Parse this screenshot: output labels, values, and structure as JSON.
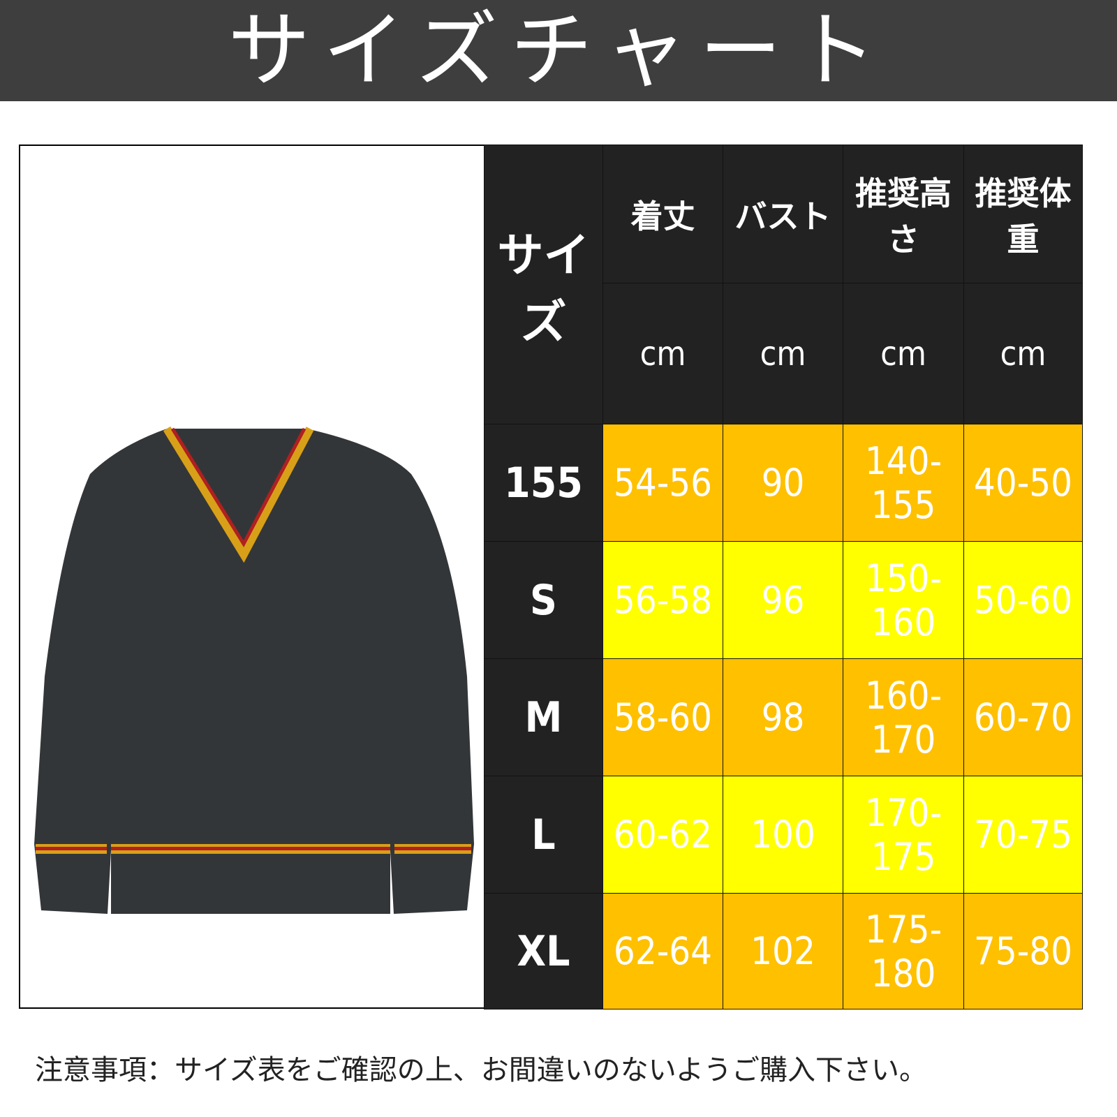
{
  "title": "サイズチャート",
  "table": {
    "size_header": "サイズ",
    "columns": [
      {
        "label": "着丈",
        "unit": "cm"
      },
      {
        "label": "バスト",
        "unit": "cm"
      },
      {
        "label": "推奨高さ",
        "unit": "cm"
      },
      {
        "label": "推奨体重",
        "unit": "cm"
      }
    ],
    "rows": [
      {
        "size": "155",
        "values": [
          "54-56",
          "90",
          "140-155",
          "40-50"
        ],
        "color": "#FFC000"
      },
      {
        "size": "S",
        "values": [
          "56-58",
          "96",
          "150-160",
          "50-60"
        ],
        "color": "#FFFF00"
      },
      {
        "size": "M",
        "values": [
          "58-60",
          "98",
          "160-170",
          "60-70"
        ],
        "color": "#FFC000"
      },
      {
        "size": "L",
        "values": [
          "60-62",
          "100",
          "170-175",
          "70-75"
        ],
        "color": "#FFFF00"
      },
      {
        "size": "XL",
        "values": [
          "62-64",
          "102",
          "175-180",
          "75-80"
        ],
        "color": "#FFC000"
      }
    ]
  },
  "note": "注意事項：サイズ表をご確認の上、お間違いのないようご購入下さい。",
  "product_image": "dark-grey-v-neck-sweater-with-red-yellow-trim"
}
